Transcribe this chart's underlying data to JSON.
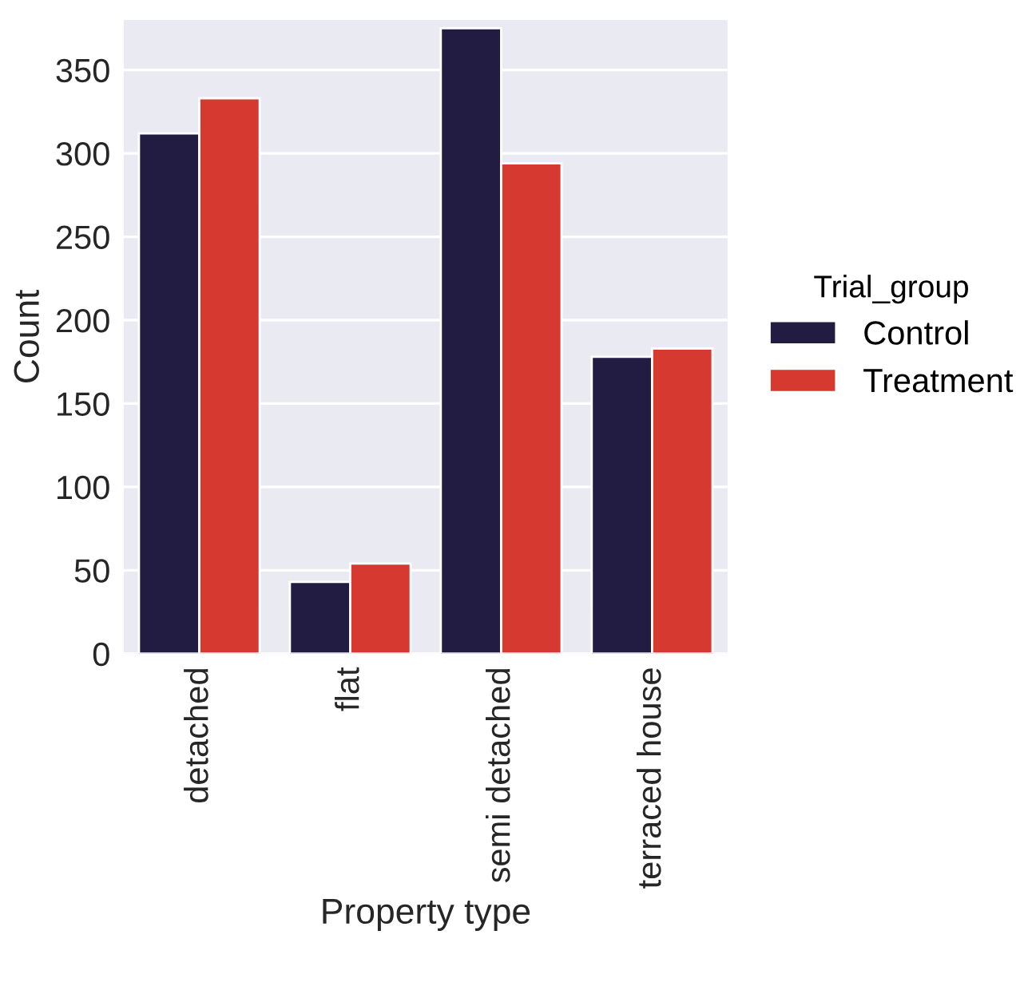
{
  "chart_data": {
    "type": "bar",
    "xlabel": "Property type",
    "ylabel": "Count",
    "legend_title": "Trial_group",
    "categories": [
      "detached",
      "flat",
      "semi detached",
      "terraced house"
    ],
    "series": [
      {
        "name": "Control",
        "color": "#221c43",
        "values": [
          312,
          43,
          375,
          178
        ]
      },
      {
        "name": "Treatment",
        "color": "#d5392f",
        "values": [
          333,
          54,
          294,
          183
        ]
      }
    ],
    "ylim": [
      0,
      380
    ],
    "yticks": [
      0,
      50,
      100,
      150,
      200,
      250,
      300,
      350
    ],
    "grid": "y",
    "legend": "right"
  }
}
